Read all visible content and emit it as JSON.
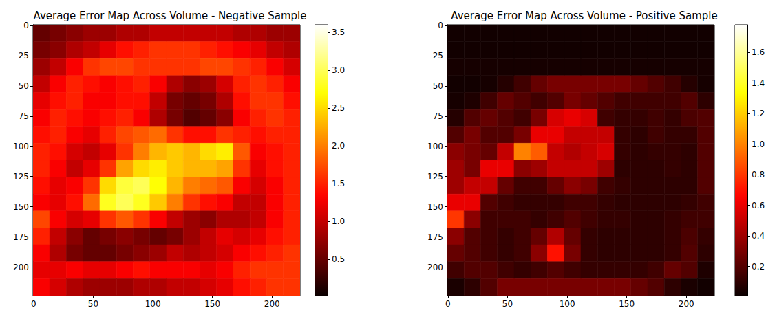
{
  "chart_data": [
    {
      "type": "heatmap",
      "title": "Average Error Map Across Volume - Negative Sample",
      "xlim": [
        -0.5,
        223.5
      ],
      "ylim": [
        223.5,
        -0.5
      ],
      "xticks": [
        0,
        50,
        100,
        150,
        200
      ],
      "yticks": [
        0,
        25,
        50,
        75,
        100,
        125,
        150,
        175,
        200
      ],
      "cells": [
        [
          0.5,
          0.6,
          0.7,
          0.8,
          0.8,
          0.9,
          0.9,
          1.0,
          1.0,
          1.0,
          1.0,
          1.0,
          0.9,
          0.9,
          0.8,
          0.8
        ],
        [
          0.6,
          0.7,
          0.9,
          1.0,
          1.2,
          1.4,
          1.5,
          1.6,
          1.6,
          1.6,
          1.5,
          1.4,
          1.3,
          1.2,
          1.0,
          0.9
        ],
        [
          0.8,
          1.0,
          1.3,
          1.6,
          1.7,
          1.7,
          1.6,
          1.6,
          1.6,
          1.6,
          1.7,
          1.7,
          1.6,
          1.5,
          1.3,
          1.1
        ],
        [
          1.0,
          1.3,
          1.5,
          1.4,
          1.3,
          1.4,
          1.5,
          1.3,
          0.9,
          0.7,
          0.8,
          1.1,
          1.5,
          1.6,
          1.5,
          1.3
        ],
        [
          1.2,
          1.4,
          1.5,
          1.3,
          1.3,
          1.4,
          1.4,
          1.0,
          0.6,
          0.5,
          0.6,
          0.9,
          1.4,
          1.6,
          1.6,
          1.4
        ],
        [
          1.3,
          1.5,
          1.4,
          1.3,
          1.4,
          1.5,
          1.3,
          0.9,
          0.6,
          0.4,
          0.5,
          0.7,
          1.3,
          1.5,
          1.6,
          1.5
        ],
        [
          1.4,
          1.5,
          1.3,
          1.2,
          1.5,
          1.7,
          1.8,
          1.9,
          1.6,
          1.4,
          1.4,
          1.6,
          1.5,
          1.4,
          1.5,
          1.5
        ],
        [
          1.5,
          1.4,
          1.1,
          1.0,
          1.2,
          1.6,
          2.0,
          2.3,
          2.4,
          2.3,
          2.5,
          2.6,
          1.8,
          1.3,
          1.4,
          1.5
        ],
        [
          1.5,
          1.3,
          1.0,
          1.2,
          1.6,
          2.2,
          2.5,
          2.6,
          2.4,
          2.3,
          2.3,
          2.2,
          1.6,
          1.2,
          1.4,
          1.5
        ],
        [
          1.4,
          1.2,
          1.3,
          1.6,
          2.5,
          2.9,
          3.0,
          2.7,
          2.3,
          2.0,
          1.9,
          1.8,
          1.3,
          1.1,
          1.3,
          1.5
        ],
        [
          1.3,
          1.2,
          1.4,
          1.9,
          2.8,
          3.0,
          2.8,
          2.4,
          2.0,
          1.6,
          1.4,
          1.3,
          1.0,
          1.0,
          1.3,
          1.5
        ],
        [
          1.7,
          1.3,
          1.1,
          1.2,
          1.6,
          1.8,
          1.6,
          1.3,
          1.0,
          0.8,
          0.7,
          0.9,
          0.9,
          1.0,
          1.3,
          1.5
        ],
        [
          1.5,
          1.0,
          0.7,
          0.5,
          0.6,
          0.7,
          0.6,
          0.5,
          0.6,
          0.8,
          1.0,
          1.2,
          1.1,
          1.2,
          1.4,
          1.5
        ],
        [
          1.3,
          0.9,
          0.6,
          0.5,
          0.5,
          0.6,
          0.7,
          0.8,
          1.0,
          0.9,
          1.0,
          1.1,
          1.3,
          1.4,
          1.5,
          1.6
        ],
        [
          1.2,
          1.2,
          1.3,
          1.2,
          1.2,
          1.3,
          1.4,
          1.3,
          1.3,
          1.3,
          1.2,
          1.3,
          1.5,
          1.6,
          1.6,
          1.6
        ],
        [
          1.3,
          1.1,
          0.9,
          0.8,
          0.8,
          0.8,
          0.9,
          0.9,
          1.0,
          1.0,
          1.1,
          1.2,
          1.4,
          1.5,
          1.6,
          1.6
        ]
      ],
      "colorbar": {
        "range": [
          0.02,
          3.6
        ],
        "ticks": [
          0.5,
          {
            "value": 1,
            "label": "1.0"
          },
          1.5,
          {
            "value": 2,
            "label": "2.0"
          },
          2.5,
          {
            "value": 3,
            "label": "3.0"
          },
          3.5
        ]
      }
    },
    {
      "type": "heatmap",
      "title": "Average Error Map Across Volume - Positive Sample",
      "xlim": [
        -0.5,
        223.5
      ],
      "ylim": [
        223.5,
        -0.5
      ],
      "xticks": [
        0,
        50,
        100,
        150,
        200
      ],
      "yticks": [
        0,
        25,
        50,
        75,
        100,
        125,
        150,
        175,
        200
      ],
      "cells": [
        [
          0.03,
          0.03,
          0.03,
          0.03,
          0.03,
          0.03,
          0.03,
          0.03,
          0.03,
          0.03,
          0.03,
          0.03,
          0.03,
          0.03,
          0.03,
          0.03
        ],
        [
          0.03,
          0.03,
          0.03,
          0.03,
          0.03,
          0.03,
          0.03,
          0.03,
          0.03,
          0.03,
          0.03,
          0.03,
          0.03,
          0.03,
          0.03,
          0.03
        ],
        [
          0.04,
          0.04,
          0.04,
          0.04,
          0.04,
          0.04,
          0.04,
          0.04,
          0.04,
          0.04,
          0.04,
          0.04,
          0.04,
          0.04,
          0.04,
          0.04
        ],
        [
          0.03,
          0.03,
          0.04,
          0.08,
          0.15,
          0.25,
          0.3,
          0.3,
          0.3,
          0.3,
          0.3,
          0.25,
          0.2,
          0.15,
          0.08,
          0.04
        ],
        [
          0.04,
          0.06,
          0.15,
          0.25,
          0.2,
          0.15,
          0.2,
          0.3,
          0.25,
          0.2,
          0.15,
          0.15,
          0.15,
          0.15,
          0.2,
          0.1
        ],
        [
          0.08,
          0.2,
          0.25,
          0.2,
          0.15,
          0.3,
          0.55,
          0.6,
          0.55,
          0.15,
          0.12,
          0.12,
          0.15,
          0.12,
          0.18,
          0.2
        ],
        [
          0.2,
          0.3,
          0.2,
          0.2,
          0.3,
          0.6,
          0.6,
          0.5,
          0.5,
          0.5,
          0.12,
          0.1,
          0.15,
          0.12,
          0.12,
          0.2
        ],
        [
          0.35,
          0.3,
          0.25,
          0.5,
          1.0,
          0.9,
          0.5,
          0.45,
          0.5,
          0.55,
          0.12,
          0.1,
          0.12,
          0.12,
          0.1,
          0.2
        ],
        [
          0.4,
          0.3,
          0.6,
          0.6,
          0.35,
          0.4,
          0.5,
          0.5,
          0.5,
          0.4,
          0.1,
          0.1,
          0.1,
          0.12,
          0.1,
          0.2
        ],
        [
          0.4,
          0.5,
          0.5,
          0.25,
          0.15,
          0.15,
          0.25,
          0.35,
          0.3,
          0.15,
          0.12,
          0.1,
          0.1,
          0.1,
          0.1,
          0.2
        ],
        [
          0.6,
          0.6,
          0.2,
          0.15,
          0.12,
          0.12,
          0.12,
          0.15,
          0.15,
          0.12,
          0.1,
          0.1,
          0.1,
          0.1,
          0.12,
          0.15
        ],
        [
          0.8,
          0.35,
          0.15,
          0.15,
          0.15,
          0.12,
          0.15,
          0.2,
          0.15,
          0.12,
          0.12,
          0.1,
          0.1,
          0.12,
          0.15,
          0.15
        ],
        [
          0.35,
          0.2,
          0.15,
          0.12,
          0.15,
          0.25,
          0.45,
          0.25,
          0.12,
          0.1,
          0.1,
          0.1,
          0.1,
          0.12,
          0.18,
          0.12
        ],
        [
          0.25,
          0.2,
          0.15,
          0.12,
          0.15,
          0.35,
          0.7,
          0.3,
          0.12,
          0.1,
          0.1,
          0.1,
          0.1,
          0.12,
          0.2,
          0.1
        ],
        [
          0.15,
          0.2,
          0.2,
          0.15,
          0.12,
          0.15,
          0.2,
          0.15,
          0.12,
          0.12,
          0.12,
          0.12,
          0.15,
          0.25,
          0.2,
          0.06
        ],
        [
          0.05,
          0.1,
          0.2,
          0.3,
          0.3,
          0.3,
          0.3,
          0.3,
          0.3,
          0.3,
          0.3,
          0.25,
          0.2,
          0.1,
          0.05,
          0.03
        ]
      ],
      "colorbar": {
        "range": [
          0.01,
          1.78
        ],
        "ticks": [
          0.2,
          0.4,
          0.6,
          0.8,
          {
            "value": 1,
            "label": "1.0"
          },
          1.2,
          1.4,
          1.6
        ]
      }
    }
  ]
}
